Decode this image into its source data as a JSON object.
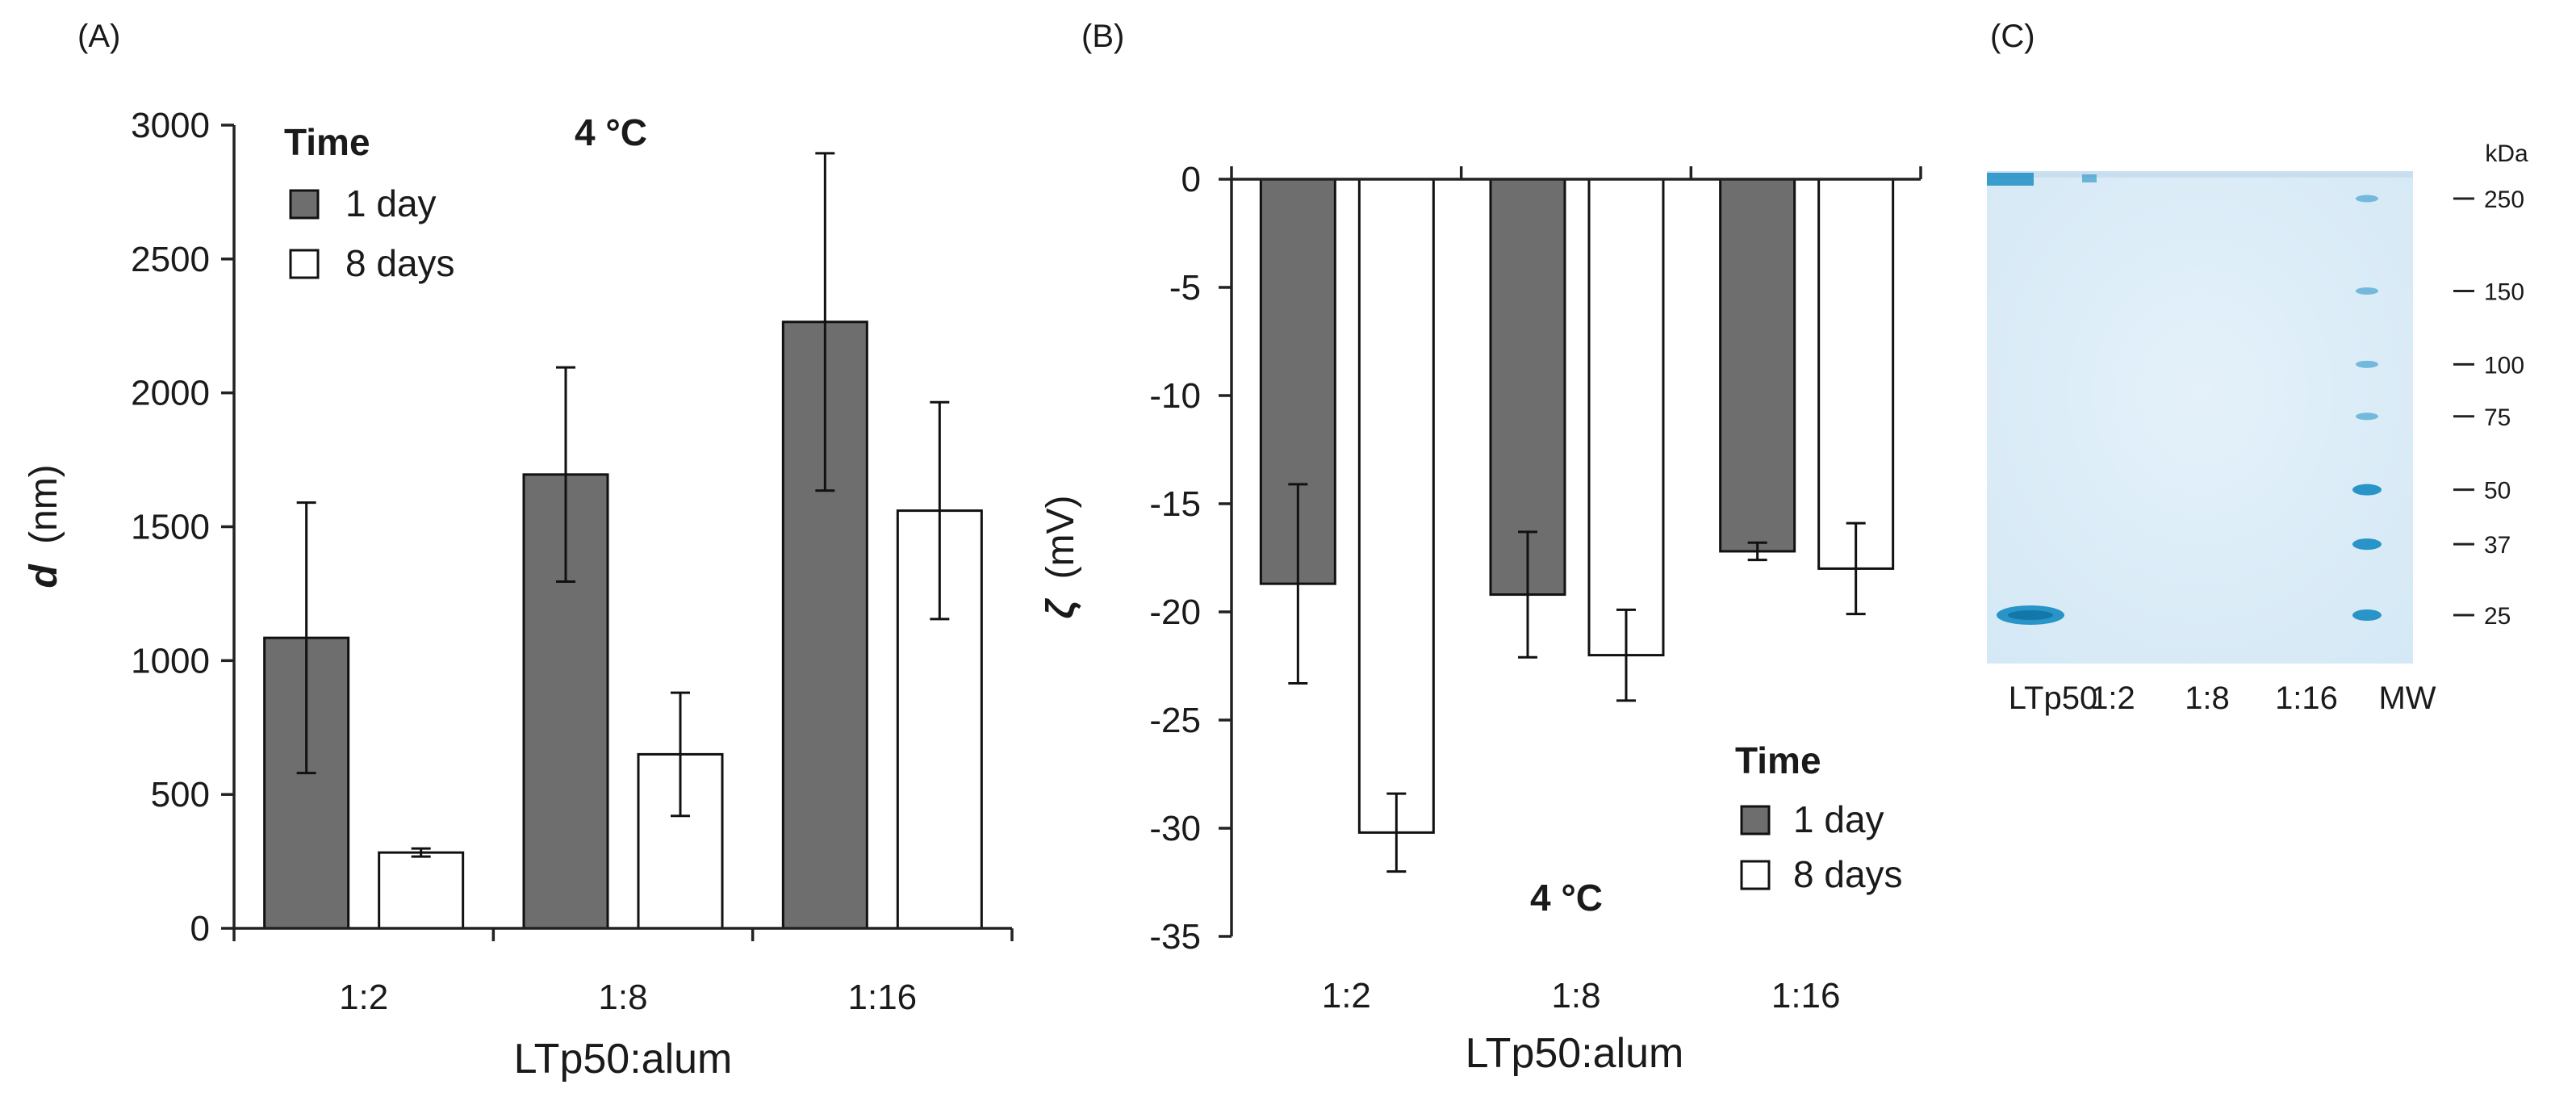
{
  "chart_data": [
    {
      "panel": "(A)",
      "type": "bar",
      "categories": [
        "1:2",
        "1:8",
        "1:16"
      ],
      "series": [
        {
          "name": "1 day",
          "color": "#6e6e6e",
          "values": [
            1085,
            1695,
            2265
          ],
          "errors": [
            505,
            400,
            630
          ]
        },
        {
          "name": "8 days",
          "color": "#ffffff",
          "values": [
            283,
            650,
            1560
          ],
          "errors": [
            15,
            230,
            405
          ]
        }
      ],
      "title": "",
      "annotation": "4 °C",
      "legend_title": "Time",
      "xlabel": "LTp50:alum",
      "ylabel_symbol": "d",
      "ylabel_unit": "(nm)",
      "ylim": [
        0,
        3000
      ],
      "yticks": [
        0,
        500,
        1000,
        1500,
        2000,
        2500,
        3000
      ]
    },
    {
      "panel": "(B)",
      "type": "bar",
      "categories": [
        "1:2",
        "1:8",
        "1:16"
      ],
      "series": [
        {
          "name": "1 day",
          "color": "#6e6e6e",
          "values": [
            -18.7,
            -19.2,
            -17.2
          ],
          "errors": [
            4.6,
            2.9,
            0.4
          ]
        },
        {
          "name": "8 days",
          "color": "#ffffff",
          "values": [
            -30.2,
            -22.0,
            -18.0
          ],
          "errors": [
            1.8,
            2.1,
            2.1
          ]
        }
      ],
      "title": "",
      "annotation": "4 °C",
      "legend_title": "Time",
      "xlabel": "LTp50:alum",
      "ylabel_symbol": "ζ",
      "ylabel_unit": "(mV)",
      "ylim": [
        -35,
        0
      ],
      "yticks": [
        0,
        -5,
        -10,
        -15,
        -20,
        -25,
        -30,
        -35
      ]
    }
  ],
  "gel": {
    "panel": "(C)",
    "unit_label": "kDa",
    "markers": [
      "250",
      "150",
      "100",
      "75",
      "50",
      "37",
      "25"
    ],
    "marker_kda": [
      250,
      150,
      100,
      75,
      50,
      37,
      25
    ],
    "lanes": [
      "LTp50",
      "1:2",
      "1:8",
      "1:16",
      "MW"
    ],
    "band_lane": "LTp50",
    "band_kda": 25,
    "stain_color": "#1f8fc4",
    "background_color": "#dfeef8"
  }
}
